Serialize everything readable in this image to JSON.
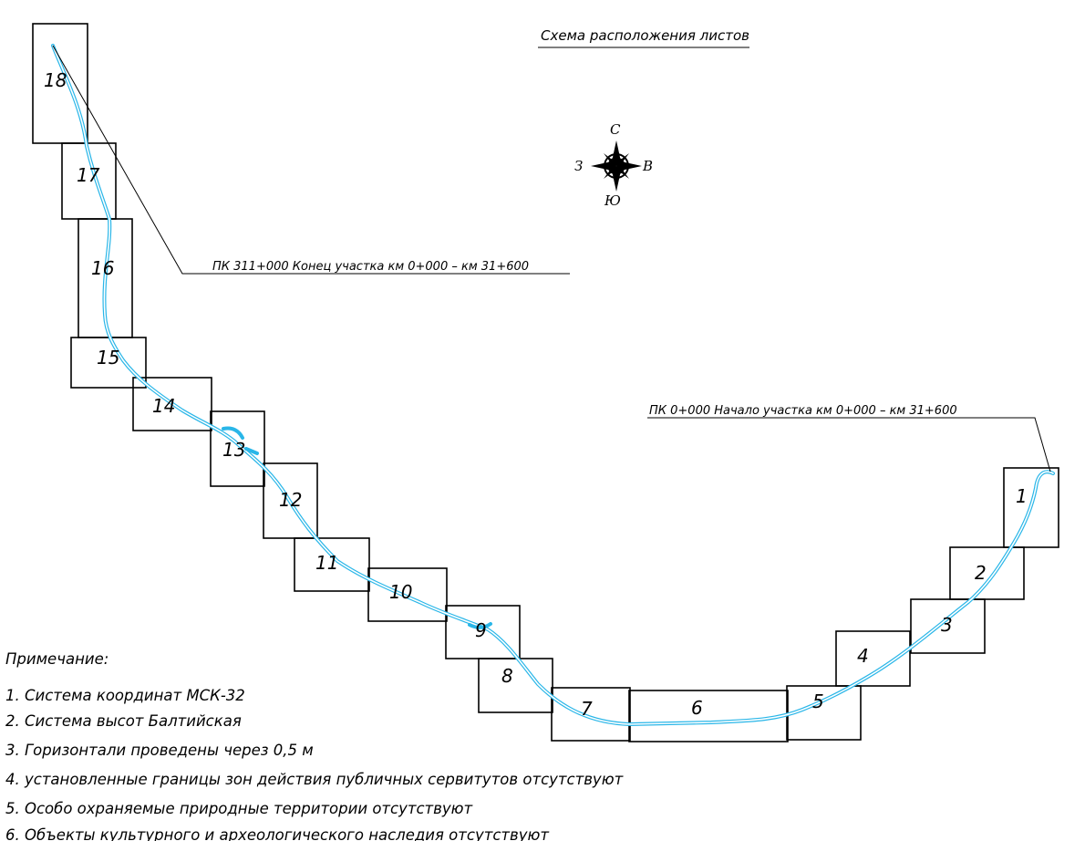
{
  "title": "Схема расположения листов",
  "compass": {
    "north": "С",
    "south": "Ю",
    "east": "В",
    "west": "З"
  },
  "callouts": {
    "end": "ПК 311+000 Конец участка км 0+000 – км 31+600",
    "start": "ПК 0+000 Начало участка км 0+000 – км 31+600"
  },
  "sheets": [
    "1",
    "2",
    "3",
    "4",
    "5",
    "6",
    "7",
    "8",
    "9",
    "10",
    "11",
    "12",
    "13",
    "14",
    "15",
    "16",
    "17",
    "18"
  ],
  "notes": {
    "heading": "Примечание:",
    "items": [
      "1. Система координат МСК-32",
      "2. Система высот Балтийская",
      "3. Горизонтали проведены через 0,5 м",
      "4. установленные границы зон действия публичных сервитутов отсутствуют",
      "5. Особо охраняемые природные территории отсутствуют",
      "6. Объекты культурного и археологического наследия отсутствуют"
    ]
  },
  "colors": {
    "route": "#29b6e8",
    "lines": "#000000"
  }
}
